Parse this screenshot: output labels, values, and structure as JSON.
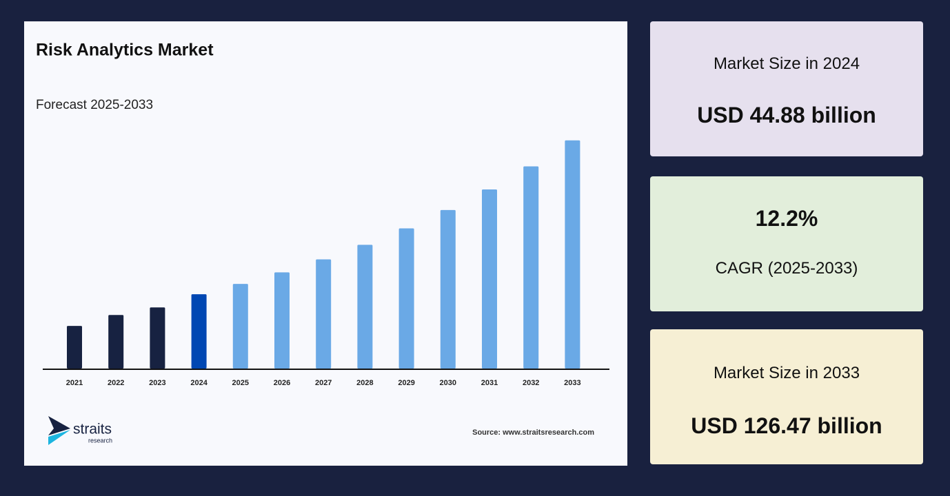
{
  "chart_data": {
    "type": "bar",
    "title": "Risk Analytics Market",
    "subtitle": "Forecast 2025-2033",
    "categories": [
      "2021",
      "2022",
      "2023",
      "2024",
      "2025",
      "2026",
      "2027",
      "2028",
      "2029",
      "2030",
      "2031",
      "2032",
      "2033"
    ],
    "values": [
      28.1,
      33.9,
      37.9,
      44.88,
      50.36,
      56.5,
      63.39,
      71.12,
      79.8,
      89.53,
      100.45,
      112.71,
      126.47
    ],
    "colors": [
      "#172241",
      "#172241",
      "#172241",
      "#0047b3",
      "#6aa9e6",
      "#6aa9e6",
      "#6aa9e6",
      "#6aa9e6",
      "#6aa9e6",
      "#6aa9e6",
      "#6aa9e6",
      "#6aa9e6",
      "#6aa9e6"
    ],
    "ylim": [
      5.5,
      131.5
    ]
  },
  "cards": [
    {
      "label": "Market Size in 2024",
      "value": "USD 44.88 billion"
    },
    {
      "value": "12.2%",
      "label": "CAGR (2025-2033)"
    },
    {
      "label": "Market Size in 2033",
      "value": "USD 126.47 billion"
    }
  ],
  "logo": {
    "name": "straits",
    "sub": "research"
  },
  "source": "Source: www.straitsresearch.com"
}
